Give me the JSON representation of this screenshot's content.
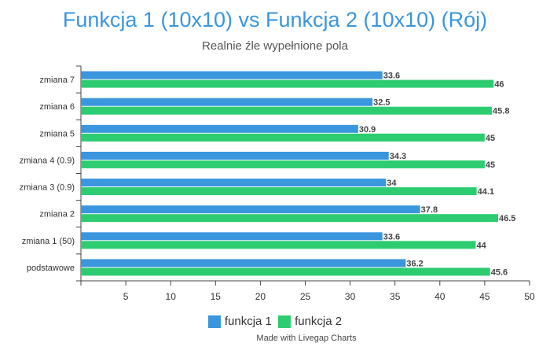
{
  "chart_data": {
    "type": "bar",
    "orientation": "horizontal",
    "title": "Funkcja 1 (10x10) vs Funkcja 2 (10x10) (Rój)",
    "subtitle": "Realnie źle wypełnione pola",
    "categories": [
      "zmiana 7",
      "zmiana 6",
      "zmiana 5",
      "zmiana 4 (0.9)",
      "zmiana 3 (0.9)",
      "zmiana 2",
      "zmiana 1 (50)",
      "podstawowe"
    ],
    "series": [
      {
        "name": "funkcja 1",
        "color": "#3a96dd",
        "values": [
          33.6,
          32.5,
          30.9,
          34.3,
          34,
          37.8,
          33.6,
          36.2
        ]
      },
      {
        "name": "funkcja 2",
        "color": "#2ecc71",
        "values": [
          46,
          45.8,
          45,
          45,
          44.1,
          46.5,
          44,
          45.6
        ]
      }
    ],
    "xlim": [
      0,
      50
    ],
    "xticks": [
      5,
      10,
      15,
      20,
      25,
      30,
      35,
      40,
      45,
      50
    ],
    "grid": false,
    "legend_position": "bottom"
  },
  "credit": "Made with Livegap Charts"
}
